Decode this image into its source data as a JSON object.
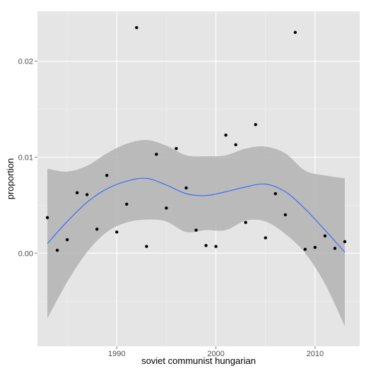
{
  "chart_data": {
    "type": "scatter",
    "xlabel": "soviet communist hungarian",
    "ylabel": "proportion",
    "xlim": [
      1982,
      2014.5
    ],
    "ylim": [
      -0.0097,
      0.0252
    ],
    "x_ticks": [
      1990,
      2000,
      2010
    ],
    "x_tick_labels": [
      "1990",
      "2000",
      "2010"
    ],
    "y_ticks": [
      0.0,
      0.01,
      0.02
    ],
    "y_tick_labels": [
      "0.00",
      "0.01",
      "0.02"
    ],
    "grid": true,
    "legend": "none",
    "points": [
      {
        "x": 1983,
        "y": 0.0037
      },
      {
        "x": 1984,
        "y": 0.0003
      },
      {
        "x": 1985,
        "y": 0.0014
      },
      {
        "x": 1986,
        "y": 0.0063
      },
      {
        "x": 1987,
        "y": 0.0061
      },
      {
        "x": 1988,
        "y": 0.0025
      },
      {
        "x": 1989,
        "y": 0.0081
      },
      {
        "x": 1990,
        "y": 0.0022
      },
      {
        "x": 1991,
        "y": 0.0051
      },
      {
        "x": 1992,
        "y": 0.0235
      },
      {
        "x": 1993,
        "y": 0.0007
      },
      {
        "x": 1994,
        "y": 0.0103
      },
      {
        "x": 1995,
        "y": 0.0047
      },
      {
        "x": 1996,
        "y": 0.0109
      },
      {
        "x": 1997,
        "y": 0.0068
      },
      {
        "x": 1998,
        "y": 0.0024
      },
      {
        "x": 1999,
        "y": 0.0008
      },
      {
        "x": 2000,
        "y": 0.0007
      },
      {
        "x": 2001,
        "y": 0.0123
      },
      {
        "x": 2002,
        "y": 0.0113
      },
      {
        "x": 2003,
        "y": 0.0032
      },
      {
        "x": 2004,
        "y": 0.0134
      },
      {
        "x": 2005,
        "y": 0.0016
      },
      {
        "x": 2006,
        "y": 0.0062
      },
      {
        "x": 2007,
        "y": 0.004
      },
      {
        "x": 2008,
        "y": 0.023
      },
      {
        "x": 2009,
        "y": 0.0004
      },
      {
        "x": 2010,
        "y": 0.0006
      },
      {
        "x": 2011,
        "y": 0.0018
      },
      {
        "x": 2012,
        "y": 0.0005
      },
      {
        "x": 2013,
        "y": 0.0012
      }
    ],
    "smooth": {
      "x": [
        1983,
        1985,
        1987,
        1989,
        1991,
        1993,
        1995,
        1997,
        1999,
        2001,
        2003,
        2005,
        2007,
        2009,
        2011,
        2013
      ],
      "y": [
        0.001,
        0.0033,
        0.0053,
        0.0067,
        0.0075,
        0.0078,
        0.0071,
        0.0062,
        0.006,
        0.0064,
        0.0069,
        0.0072,
        0.0064,
        0.0046,
        0.0024,
        0.0001
      ],
      "lower": [
        -0.0068,
        -0.003,
        0.0001,
        0.0022,
        0.0032,
        0.0035,
        0.0033,
        0.0022,
        0.0024,
        0.0024,
        0.0034,
        0.0033,
        0.002,
        0.0,
        -0.0032,
        -0.0076
      ],
      "upper": [
        0.0088,
        0.0085,
        0.0091,
        0.0104,
        0.0114,
        0.0118,
        0.0112,
        0.0102,
        0.0101,
        0.0102,
        0.0109,
        0.0111,
        0.0104,
        0.0086,
        0.0081,
        0.0078
      ]
    },
    "colors": {
      "panel": "#e5e5e5",
      "grid_major": "#ffffff",
      "grid_minor": "#f2f2f2",
      "ribbon": "#b3b3b3",
      "line": "#3366ff",
      "point": "#000000",
      "tick": "#7f7f7f"
    }
  }
}
